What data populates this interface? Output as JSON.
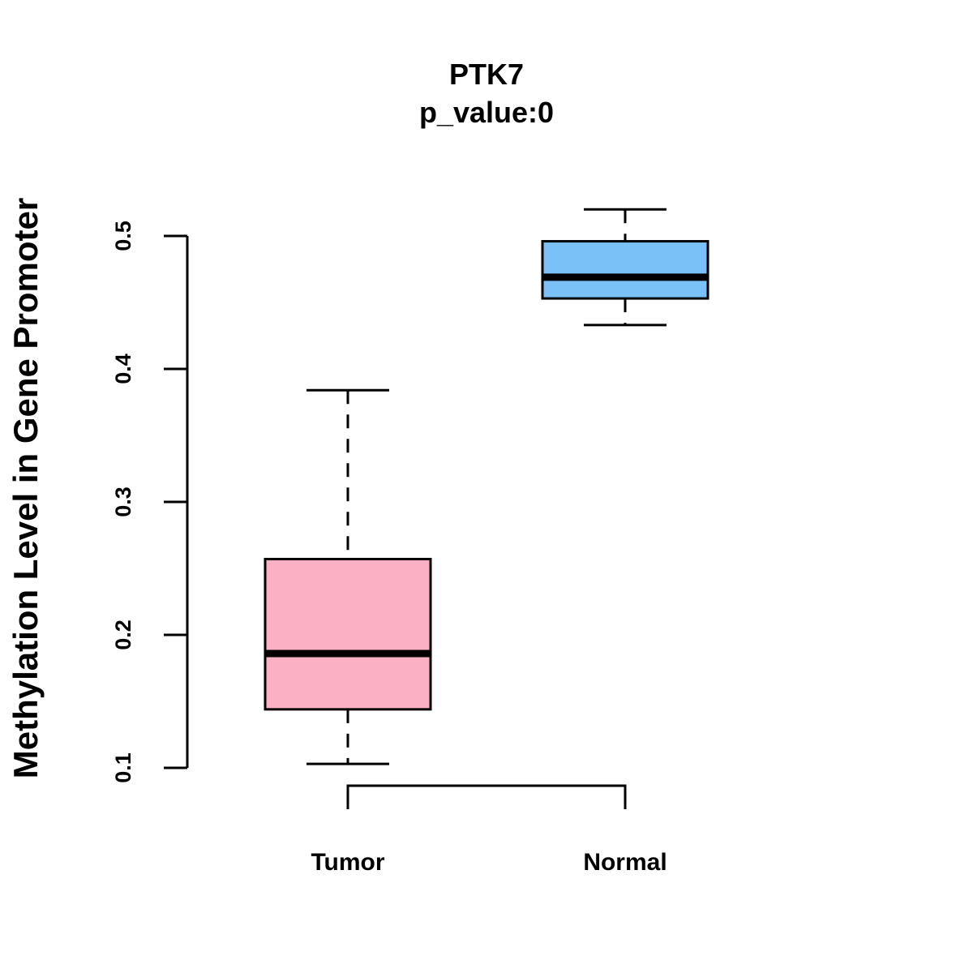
{
  "chart_data": {
    "type": "boxplot",
    "title": "PTK7",
    "subtitle": "p_value:0",
    "ylabel": "Methylation Level in Gene Promoter",
    "xlabel": "",
    "ylim": [
      0.1,
      0.5
    ],
    "yticks": [
      "0.1",
      "0.2",
      "0.3",
      "0.4",
      "0.5"
    ],
    "categories": [
      "Tumor",
      "Normal"
    ],
    "boxes": [
      {
        "name": "Tumor",
        "whisker_low": 0.103,
        "q1": 0.144,
        "median": 0.186,
        "q3": 0.257,
        "whisker_high": 0.384,
        "color": "#FBB0C3"
      },
      {
        "name": "Normal",
        "whisker_low": 0.433,
        "q1": 0.453,
        "median": 0.469,
        "q3": 0.496,
        "whisker_high": 0.52,
        "color": "#79C1F7"
      }
    ],
    "comparison_bracket": {
      "from": "Tumor",
      "to": "Normal"
    }
  }
}
